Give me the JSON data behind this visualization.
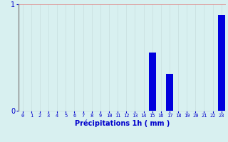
{
  "hours": [
    0,
    1,
    2,
    3,
    4,
    5,
    6,
    7,
    8,
    9,
    10,
    11,
    12,
    13,
    14,
    15,
    16,
    17,
    18,
    19,
    20,
    21,
    22,
    23
  ],
  "values": [
    0,
    0,
    0,
    0,
    0,
    0,
    0,
    0,
    0,
    0,
    0,
    0,
    0,
    0,
    0,
    0.55,
    0,
    0.35,
    0,
    0,
    0,
    0,
    0,
    0.9
  ],
  "bar_color": "#0000dd",
  "background_color": "#d8f0f0",
  "grid_color_v": "#c8dede",
  "grid_color_h": "#e08080",
  "xlabel": "Précipitations 1h ( mm )",
  "xlabel_color": "#0000cc",
  "tick_color": "#0000cc",
  "axis_color": "#888888",
  "ylim": [
    0,
    1.0
  ],
  "yticks": [
    0,
    1
  ],
  "figsize": [
    3.2,
    2.0
  ],
  "dpi": 100
}
